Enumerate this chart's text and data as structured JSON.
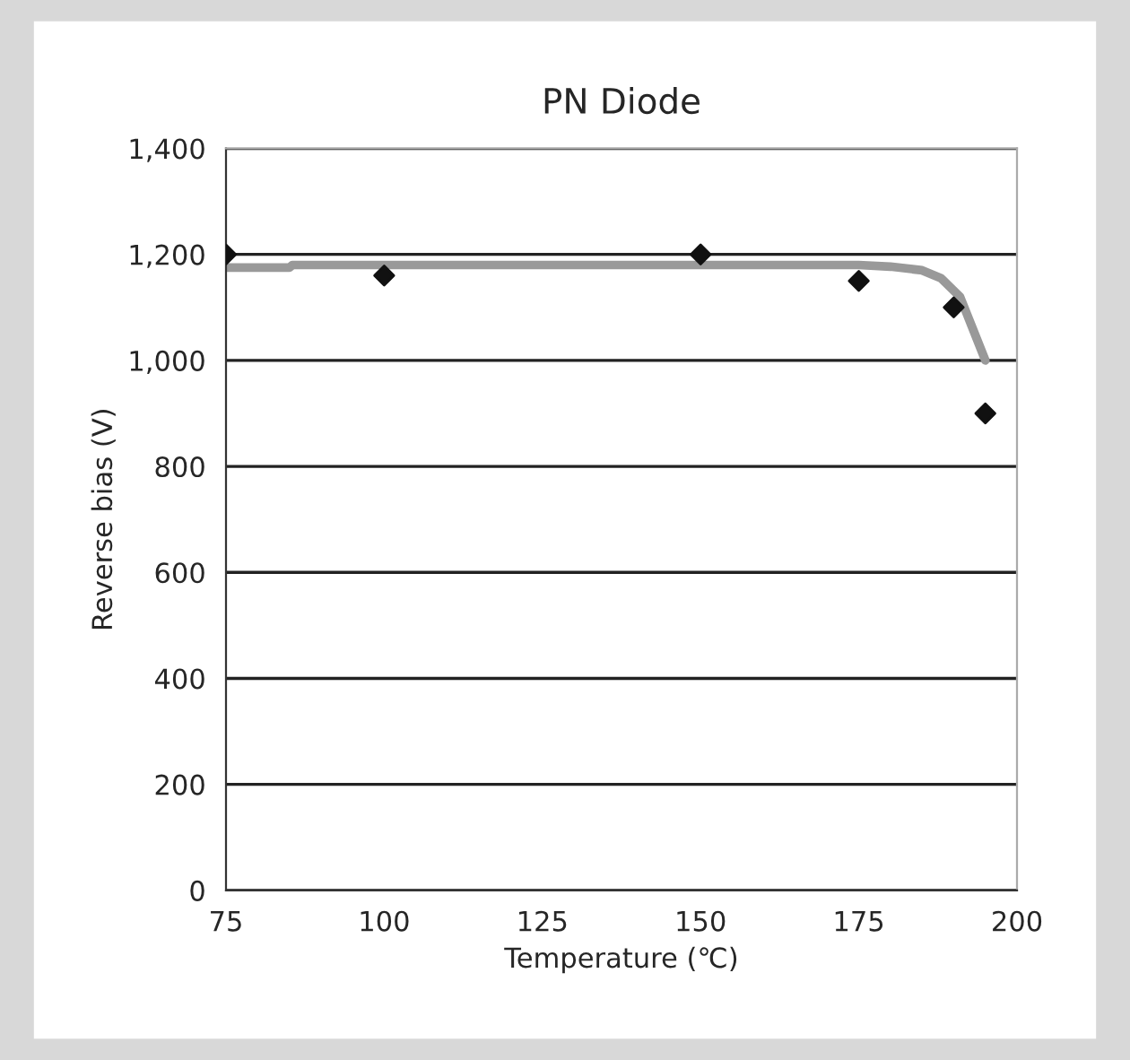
{
  "chart_data": {
    "type": "scatter",
    "title": "PN Diode",
    "xlabel": "Temperature (℃)",
    "ylabel": "Reverse bias (V)",
    "series": [
      {
        "color": "#111111",
        "marker": "diamond",
        "x": [
          75,
          100,
          150,
          175,
          190,
          195
        ],
        "values": [
          1200,
          1160,
          1200,
          1150,
          1100,
          900
        ]
      },
      {
        "type": "line",
        "color": "#999999",
        "marker": "none",
        "x": [
          75,
          85,
          85.5,
          175,
          180,
          185,
          188,
          191,
          193,
          195
        ],
        "values": [
          1175,
          1175,
          1180,
          1180,
          1177,
          1170,
          1155,
          1120,
          1060,
          1000
        ]
      }
    ],
    "xlim": [
      75,
      200
    ],
    "xticks": [
      75,
      100,
      125,
      150,
      175,
      200
    ],
    "ylim": [
      0,
      1400
    ],
    "yticks": [
      {
        "value": 0,
        "label": "0"
      },
      {
        "value": 200,
        "label": "200"
      },
      {
        "value": 400,
        "label": "400"
      },
      {
        "value": 600,
        "label": "600"
      },
      {
        "value": 800,
        "label": "800"
      },
      {
        "value": 1000,
        "label": "1,000"
      },
      {
        "value": 1200,
        "label": "1,200"
      },
      {
        "value": 1400,
        "label": "1,400"
      }
    ],
    "grid": "y"
  }
}
